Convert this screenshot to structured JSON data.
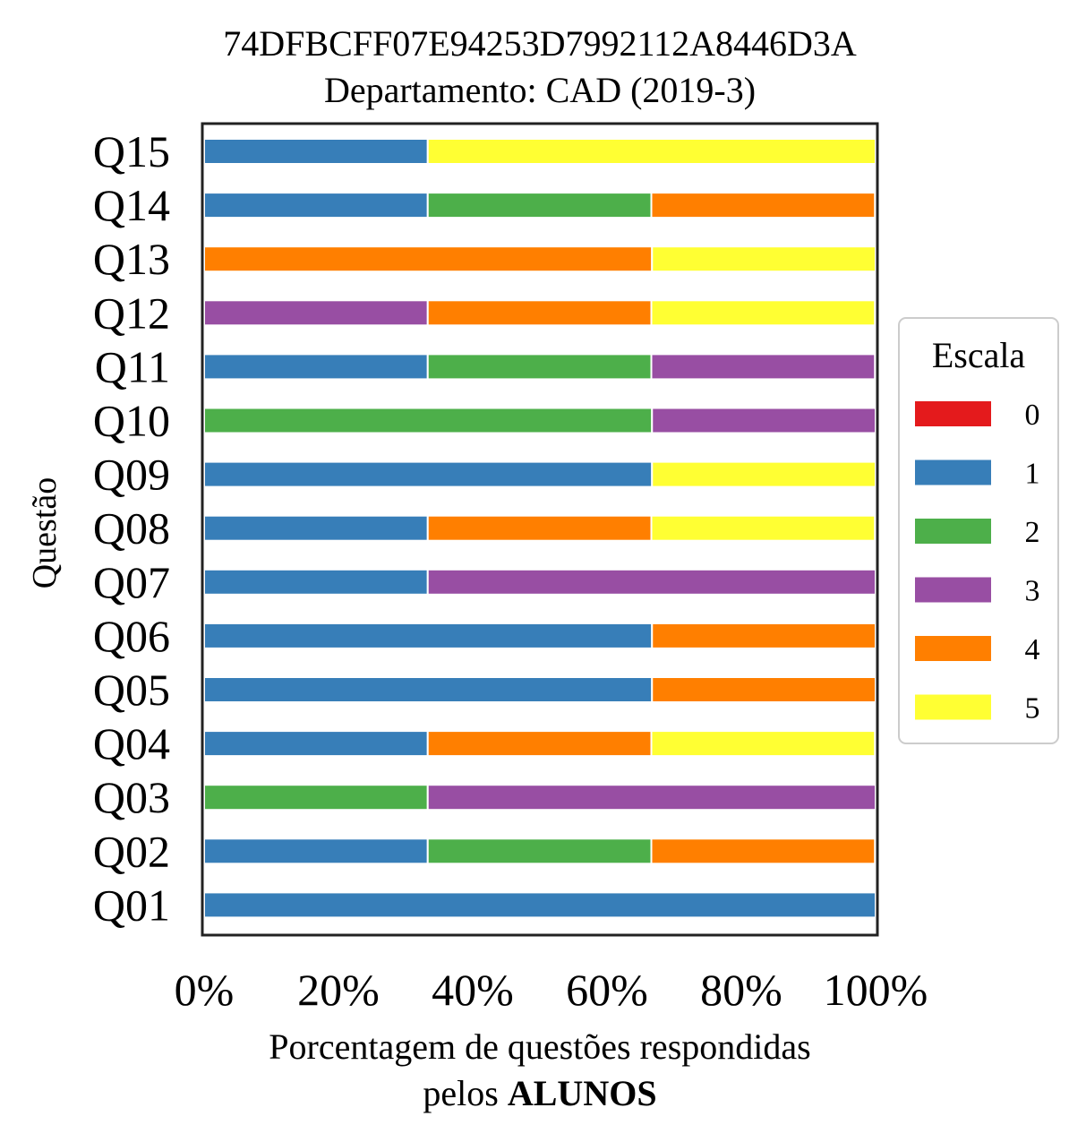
{
  "chart_data": {
    "type": "bar",
    "orientation": "horizontal",
    "stacked": true,
    "title": "74DFBCFF07E94253D7992112A8446D3A",
    "subtitle": "Departamento: CAD (2019-3)",
    "xlabel_line1": "Porcentagem de questões respondidas",
    "xlabel_line2_prefix": "pelos ",
    "xlabel_line2_bold": "ALUNOS",
    "ylabel": "Questão",
    "xlim": [
      0,
      100
    ],
    "xticks": [
      "0%",
      "20%",
      "40%",
      "60%",
      "80%",
      "100%"
    ],
    "categories": [
      "Q01",
      "Q02",
      "Q03",
      "Q04",
      "Q05",
      "Q06",
      "Q07",
      "Q08",
      "Q09",
      "Q10",
      "Q11",
      "Q12",
      "Q13",
      "Q14",
      "Q15"
    ],
    "legend": {
      "title": "Escala",
      "placement": "center-right"
    },
    "series": [
      {
        "name": "0",
        "color": "#e41a1c",
        "values": [
          0,
          0,
          0,
          0,
          0,
          0,
          0,
          0,
          0,
          0,
          0,
          0,
          0,
          0,
          0
        ]
      },
      {
        "name": "1",
        "color": "#377eb8",
        "values": [
          100,
          33.3,
          0,
          33.3,
          66.7,
          66.7,
          33.3,
          33.3,
          66.7,
          0,
          33.3,
          0,
          0,
          33.3,
          33.3
        ]
      },
      {
        "name": "2",
        "color": "#4daf4a",
        "values": [
          0,
          33.3,
          33.3,
          0,
          0,
          0,
          0,
          0,
          0,
          66.7,
          33.3,
          0,
          0,
          33.3,
          0
        ]
      },
      {
        "name": "3",
        "color": "#984ea3",
        "values": [
          0,
          0,
          66.7,
          0,
          0,
          0,
          66.7,
          0,
          0,
          33.3,
          33.3,
          33.3,
          0,
          0,
          0
        ]
      },
      {
        "name": "4",
        "color": "#ff7f00",
        "values": [
          0,
          33.3,
          0,
          33.3,
          33.3,
          33.3,
          0,
          33.3,
          0,
          0,
          0,
          33.3,
          66.7,
          33.3,
          0
        ]
      },
      {
        "name": "5",
        "color": "#ffff33",
        "values": [
          0,
          0,
          0,
          33.3,
          0,
          0,
          0,
          33.3,
          33.3,
          0,
          0,
          33.3,
          33.3,
          0,
          66.7
        ]
      }
    ]
  }
}
